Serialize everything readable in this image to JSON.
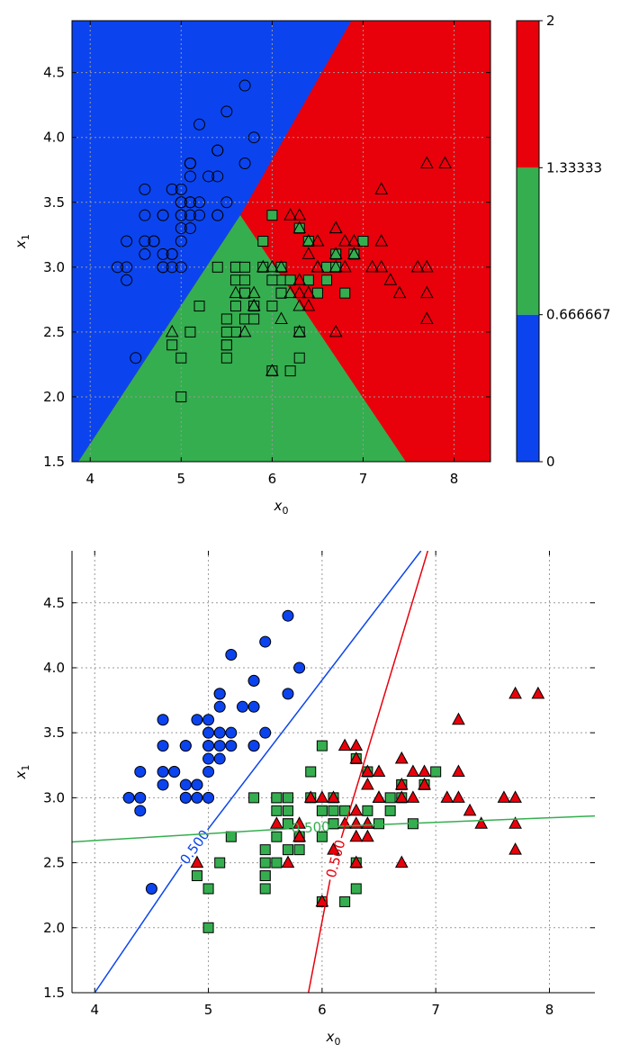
{
  "colors": {
    "class0": "#0b44ee",
    "class1": "#35ae4f",
    "class2": "#e8000b"
  },
  "chart_data": [
    {
      "type": "scatter",
      "title": "",
      "xlabel": "x",
      "xlabel_sub": "0",
      "ylabel": "x",
      "ylabel_sub": "1",
      "xlim": [
        3.8,
        8.4
      ],
      "ylim": [
        1.5,
        4.9
      ],
      "xticks": [
        4,
        5,
        6,
        7,
        8
      ],
      "yticks": [
        1.5,
        2.0,
        2.5,
        3.0,
        3.5,
        4.0,
        4.5
      ],
      "grid": true,
      "markers_filled": false,
      "decision_regions": {
        "class0_class1_boundary": [
          [
            3.87,
            1.5
          ],
          [
            5.65,
            3.4
          ]
        ],
        "class0_class2_boundary": [
          [
            5.65,
            3.4
          ],
          [
            6.87,
            4.9
          ]
        ],
        "class1_class2_boundary": [
          [
            5.65,
            3.4
          ],
          [
            7.47,
            1.5
          ]
        ]
      },
      "colorbar": {
        "ticks": [
          "0",
          "0.666667",
          "1.33333",
          "2"
        ],
        "bands": [
          "class0",
          "class1",
          "class2"
        ]
      }
    },
    {
      "type": "scatter",
      "title": "",
      "xlabel": "x",
      "xlabel_sub": "0",
      "ylabel": "x",
      "ylabel_sub": "1",
      "xlim": [
        3.8,
        8.4
      ],
      "ylim": [
        1.5,
        4.9
      ],
      "xticks": [
        4,
        5,
        6,
        7,
        8
      ],
      "yticks": [
        1.5,
        2.0,
        2.5,
        3.0,
        3.5,
        4.0,
        4.5
      ],
      "grid": true,
      "markers_filled": true,
      "contour_lines": [
        {
          "class": "class0",
          "label": "0.500",
          "start": [
            4.0,
            1.5
          ],
          "end": [
            6.87,
            4.9
          ],
          "label_at": [
            4.88,
            2.62
          ]
        },
        {
          "class": "class1",
          "label": "0.500",
          "start": [
            3.8,
            2.66
          ],
          "end": [
            8.4,
            2.86
          ],
          "label_at": [
            5.9,
            2.77
          ]
        },
        {
          "class": "class2",
          "label": "0.500",
          "start": [
            5.88,
            1.5
          ],
          "end": [
            6.93,
            4.9
          ],
          "label_at": [
            6.12,
            2.53
          ]
        }
      ]
    }
  ],
  "series": {
    "class0": [
      [
        5.1,
        3.5
      ],
      [
        4.9,
        3.0
      ],
      [
        4.7,
        3.2
      ],
      [
        4.6,
        3.1
      ],
      [
        5.0,
        3.6
      ],
      [
        5.4,
        3.9
      ],
      [
        4.6,
        3.4
      ],
      [
        5.0,
        3.4
      ],
      [
        4.4,
        2.9
      ],
      [
        4.9,
        3.1
      ],
      [
        5.4,
        3.7
      ],
      [
        4.8,
        3.4
      ],
      [
        4.8,
        3.0
      ],
      [
        4.3,
        3.0
      ],
      [
        5.8,
        4.0
      ],
      [
        5.7,
        4.4
      ],
      [
        5.4,
        3.9
      ],
      [
        5.1,
        3.5
      ],
      [
        5.7,
        3.8
      ],
      [
        5.1,
        3.8
      ],
      [
        5.4,
        3.4
      ],
      [
        5.1,
        3.7
      ],
      [
        4.6,
        3.6
      ],
      [
        5.1,
        3.3
      ],
      [
        4.8,
        3.4
      ],
      [
        5.0,
        3.0
      ],
      [
        5.0,
        3.4
      ],
      [
        5.2,
        3.5
      ],
      [
        5.2,
        3.4
      ],
      [
        4.7,
        3.2
      ],
      [
        4.8,
        3.1
      ],
      [
        5.4,
        3.4
      ],
      [
        5.2,
        4.1
      ],
      [
        5.5,
        4.2
      ],
      [
        4.9,
        3.1
      ],
      [
        5.0,
        3.2
      ],
      [
        5.5,
        3.5
      ],
      [
        4.9,
        3.6
      ],
      [
        4.4,
        3.0
      ],
      [
        5.1,
        3.4
      ],
      [
        5.0,
        3.5
      ],
      [
        4.5,
        2.3
      ],
      [
        4.4,
        3.2
      ],
      [
        5.0,
        3.5
      ],
      [
        5.1,
        3.8
      ],
      [
        4.8,
        3.0
      ],
      [
        5.1,
        3.8
      ],
      [
        4.6,
        3.2
      ],
      [
        5.3,
        3.7
      ],
      [
        5.0,
        3.3
      ]
    ],
    "class1": [
      [
        7.0,
        3.2
      ],
      [
        6.4,
        3.2
      ],
      [
        6.9,
        3.1
      ],
      [
        5.5,
        2.3
      ],
      [
        6.5,
        2.8
      ],
      [
        5.7,
        2.8
      ],
      [
        6.3,
        3.3
      ],
      [
        4.9,
        2.4
      ],
      [
        6.6,
        2.9
      ],
      [
        5.2,
        2.7
      ],
      [
        5.0,
        2.0
      ],
      [
        5.9,
        3.0
      ],
      [
        6.0,
        2.2
      ],
      [
        6.1,
        2.9
      ],
      [
        5.6,
        2.9
      ],
      [
        6.7,
        3.1
      ],
      [
        5.6,
        3.0
      ],
      [
        5.8,
        2.7
      ],
      [
        6.2,
        2.2
      ],
      [
        5.6,
        2.5
      ],
      [
        5.9,
        3.2
      ],
      [
        6.1,
        2.8
      ],
      [
        6.3,
        2.5
      ],
      [
        6.1,
        2.8
      ],
      [
        6.4,
        2.9
      ],
      [
        6.6,
        3.0
      ],
      [
        6.8,
        2.8
      ],
      [
        6.7,
        3.0
      ],
      [
        6.0,
        2.9
      ],
      [
        5.7,
        2.6
      ],
      [
        5.5,
        2.4
      ],
      [
        5.5,
        2.4
      ],
      [
        5.8,
        2.7
      ],
      [
        6.0,
        2.7
      ],
      [
        5.4,
        3.0
      ],
      [
        6.0,
        3.4
      ],
      [
        6.7,
        3.1
      ],
      [
        6.3,
        2.3
      ],
      [
        5.6,
        3.0
      ],
      [
        5.5,
        2.5
      ],
      [
        5.5,
        2.6
      ],
      [
        6.1,
        3.0
      ],
      [
        5.8,
        2.6
      ],
      [
        5.0,
        2.3
      ],
      [
        5.6,
        2.7
      ],
      [
        5.7,
        3.0
      ],
      [
        5.7,
        2.9
      ],
      [
        6.2,
        2.9
      ],
      [
        5.1,
        2.5
      ],
      [
        5.7,
        2.8
      ]
    ],
    "class2": [
      [
        6.3,
        3.3
      ],
      [
        5.8,
        2.7
      ],
      [
        7.1,
        3.0
      ],
      [
        6.3,
        2.9
      ],
      [
        6.5,
        3.0
      ],
      [
        7.6,
        3.0
      ],
      [
        4.9,
        2.5
      ],
      [
        7.3,
        2.9
      ],
      [
        6.7,
        2.5
      ],
      [
        7.2,
        3.6
      ],
      [
        6.5,
        3.2
      ],
      [
        6.4,
        2.7
      ],
      [
        6.8,
        3.0
      ],
      [
        5.7,
        2.5
      ],
      [
        5.8,
        2.8
      ],
      [
        6.4,
        3.2
      ],
      [
        6.5,
        3.0
      ],
      [
        7.7,
        3.8
      ],
      [
        7.7,
        2.6
      ],
      [
        6.0,
        2.2
      ],
      [
        6.9,
        3.2
      ],
      [
        5.6,
        2.8
      ],
      [
        7.7,
        2.8
      ],
      [
        6.3,
        2.7
      ],
      [
        6.7,
        3.3
      ],
      [
        7.2,
        3.2
      ],
      [
        6.2,
        2.8
      ],
      [
        6.1,
        3.0
      ],
      [
        6.4,
        2.8
      ],
      [
        7.2,
        3.0
      ],
      [
        7.4,
        2.8
      ],
      [
        7.9,
        3.8
      ],
      [
        6.4,
        2.8
      ],
      [
        6.3,
        2.8
      ],
      [
        6.1,
        2.6
      ],
      [
        7.7,
        3.0
      ],
      [
        6.3,
        3.4
      ],
      [
        6.4,
        3.1
      ],
      [
        6.0,
        3.0
      ],
      [
        6.9,
        3.1
      ],
      [
        6.7,
        3.1
      ],
      [
        6.9,
        3.1
      ],
      [
        5.8,
        2.7
      ],
      [
        6.8,
        3.2
      ],
      [
        6.7,
        3.3
      ],
      [
        6.7,
        3.0
      ],
      [
        6.3,
        2.5
      ],
      [
        6.5,
        3.0
      ],
      [
        6.2,
        3.4
      ],
      [
        5.9,
        3.0
      ]
    ]
  }
}
